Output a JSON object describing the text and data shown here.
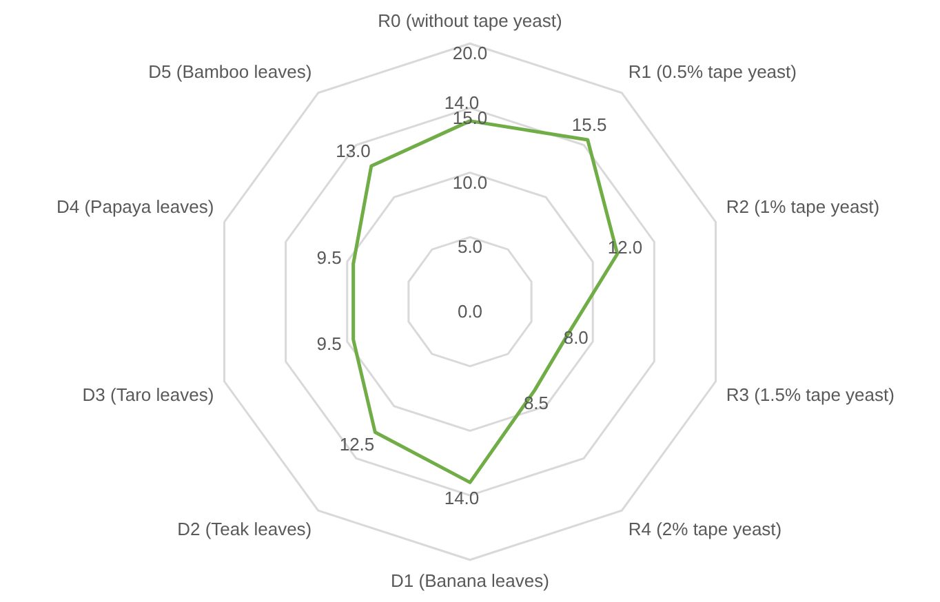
{
  "chart_data": {
    "type": "radar",
    "categories": [
      "R0 (without tape yeast)",
      "R1 (0.5% tape yeast)",
      "R2 (1% tape yeast)",
      "R3 (1.5% tape yeast)",
      "R4 (2% tape yeast)",
      "D1 (Banana leaves)",
      "D2 (Teak leaves)",
      "D3 (Taro leaves)",
      "D4 (Papaya leaves)",
      "D5 (Bamboo leaves)"
    ],
    "series": [
      {
        "color": "#70ad47",
        "values": [
          14.0,
          15.5,
          12.0,
          8.0,
          8.5,
          14.0,
          12.5,
          9.5,
          9.5,
          13.0
        ],
        "value_labels": [
          "14.0",
          "15.5",
          "12.0",
          "8.0",
          "8.5",
          "14.0",
          "12.5",
          "9.5",
          "9.5",
          "13.0"
        ]
      }
    ],
    "ylim": [
      0,
      20
    ],
    "yticks": [
      {
        "value": 0,
        "label": "0.0"
      },
      {
        "value": 5,
        "label": "5.0"
      },
      {
        "value": 10,
        "label": "10.0"
      },
      {
        "value": 15,
        "label": "15.0"
      },
      {
        "value": 20,
        "label": "20.0"
      }
    ],
    "grid": true,
    "legend": false,
    "marker": "none",
    "line_style": "solid"
  }
}
